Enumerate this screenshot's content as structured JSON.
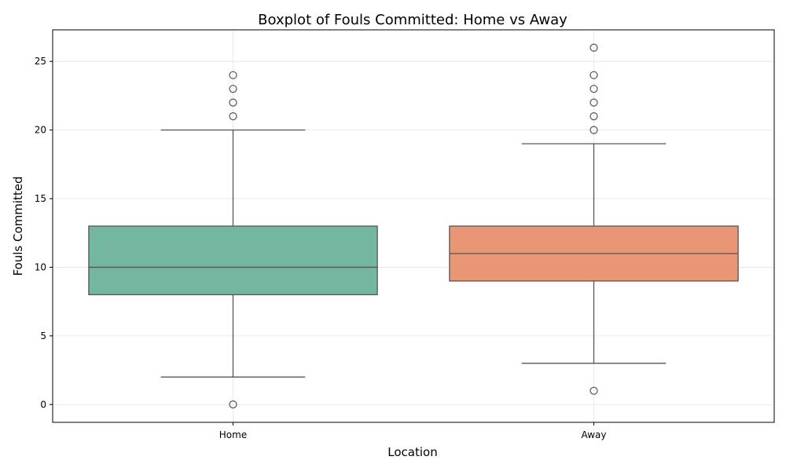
{
  "chart_data": {
    "type": "boxplot",
    "title": "Boxplot of Fouls Committed: Home vs Away",
    "xlabel": "Location",
    "ylabel": "Fouls Committed",
    "ylim": [
      -1.3,
      27.3
    ],
    "yticks": [
      0,
      5,
      10,
      15,
      20,
      25
    ],
    "grid": true,
    "categories": [
      "Home",
      "Away"
    ],
    "boxes": [
      {
        "category": "Home",
        "color": "#74b7a1",
        "whisker_low": 2,
        "q1": 8,
        "median": 10,
        "q3": 13,
        "whisker_high": 20,
        "outliers": [
          0,
          21,
          22,
          23,
          24
        ]
      },
      {
        "category": "Away",
        "color": "#e99674",
        "whisker_low": 3,
        "q1": 9,
        "median": 11,
        "q3": 13,
        "whisker_high": 19,
        "outliers": [
          1,
          20,
          21,
          22,
          23,
          24,
          26
        ]
      }
    ]
  }
}
